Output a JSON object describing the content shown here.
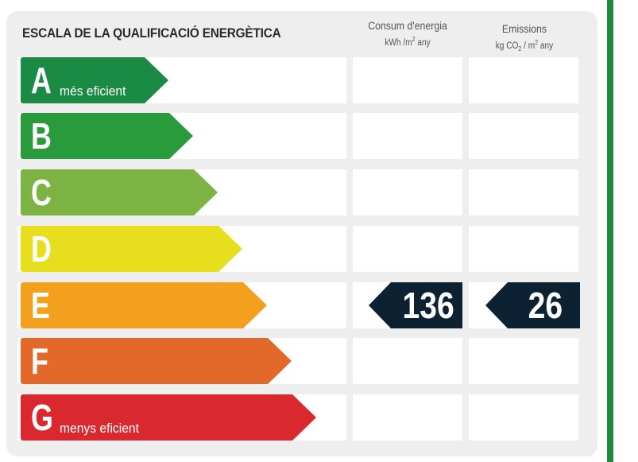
{
  "title": "ESCALA DE LA QUALIFICACIÓ ENERGÈTICA",
  "columns": {
    "consum": {
      "label": "Consum d'energia",
      "unit_a": "kWh /m",
      "unit_sup": "2",
      "unit_b": " any"
    },
    "emissions": {
      "label": "Emissions",
      "unit_a": "kg CO",
      "unit_sub": "2",
      "unit_mid": " / m",
      "unit_sup": "2",
      "unit_b": " any"
    }
  },
  "bands": [
    {
      "letter": "A",
      "desc": "més eficient",
      "color": "#1a8a44"
    },
    {
      "letter": "B",
      "desc": "",
      "color": "#2a9b3c"
    },
    {
      "letter": "C",
      "desc": "",
      "color": "#7cb342"
    },
    {
      "letter": "D",
      "desc": "",
      "color": "#e7de1e"
    },
    {
      "letter": "E",
      "desc": "",
      "color": "#f3a01e"
    },
    {
      "letter": "F",
      "desc": "",
      "color": "#e2692a"
    },
    {
      "letter": "G",
      "desc": "menys eficient",
      "color": "#d9282e"
    }
  ],
  "rating": {
    "band": "E",
    "consum_value": "136",
    "emissions_value": "26",
    "color": "#0c2233"
  }
}
